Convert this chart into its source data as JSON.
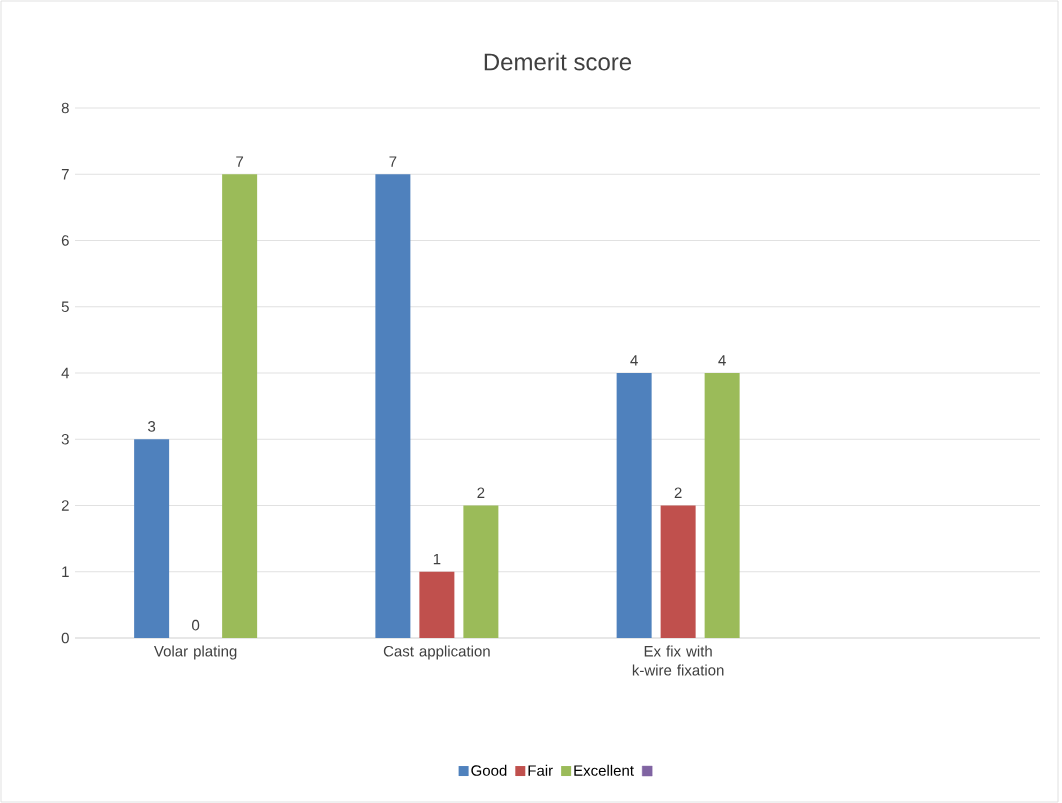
{
  "chart_data": {
    "type": "bar",
    "title": "Demerit score",
    "categories": [
      "Volar plating",
      "Cast application",
      "Ex fix with k-wire fixation",
      null
    ],
    "series": [
      {
        "name": "Good",
        "color": "#4f81bd",
        "values": [
          3,
          7,
          4,
          null
        ]
      },
      {
        "name": "Fair",
        "color": "#c0504d",
        "values": [
          0,
          1,
          2,
          null
        ]
      },
      {
        "name": "Excellent",
        "color": "#9bbb59",
        "values": [
          7,
          2,
          4,
          null
        ]
      },
      {
        "color": "#8064a2",
        "values": [
          null,
          null,
          null,
          null
        ]
      }
    ],
    "ylim": [
      0,
      8
    ],
    "yticks": [
      0,
      1,
      2,
      3,
      4,
      5,
      6,
      7,
      8
    ],
    "grid": "y",
    "legend": "bottom",
    "data_labels": true
  }
}
